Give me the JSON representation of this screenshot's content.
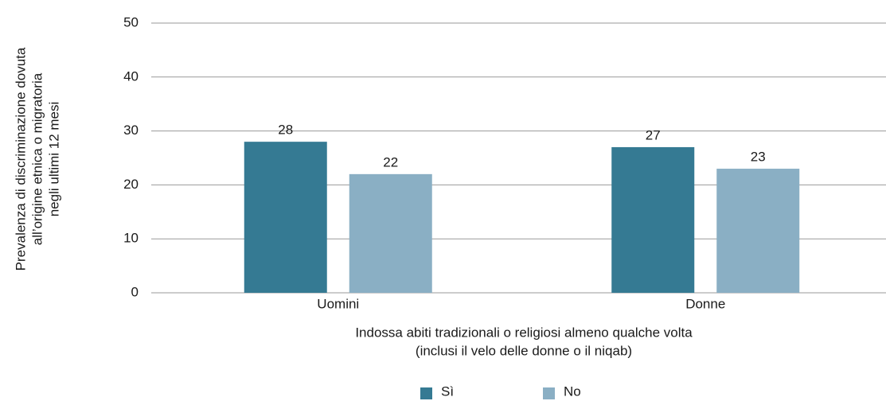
{
  "chart_data": {
    "type": "bar",
    "ylabel": [
      "Prevalenza di discriminazione dovuta",
      "all’origine etnica o migratoria",
      "negli ultimi 12 mesi"
    ],
    "xlabel": [
      "Indossa abiti tradizionali o religiosi almeno qualche volta",
      "(inclusi il velo delle donne o il niqab)"
    ],
    "categories": [
      "Uomini",
      "Donne"
    ],
    "series": [
      {
        "name": "Sì",
        "color": "#357a93",
        "values": [
          28,
          27
        ]
      },
      {
        "name": "No",
        "color": "#8aafc4",
        "values": [
          22,
          23
        ]
      }
    ],
    "ylim": [
      0,
      50
    ],
    "yticks": [
      0,
      10,
      20,
      30,
      40,
      50
    ],
    "grid": true,
    "legend": "bottom"
  }
}
